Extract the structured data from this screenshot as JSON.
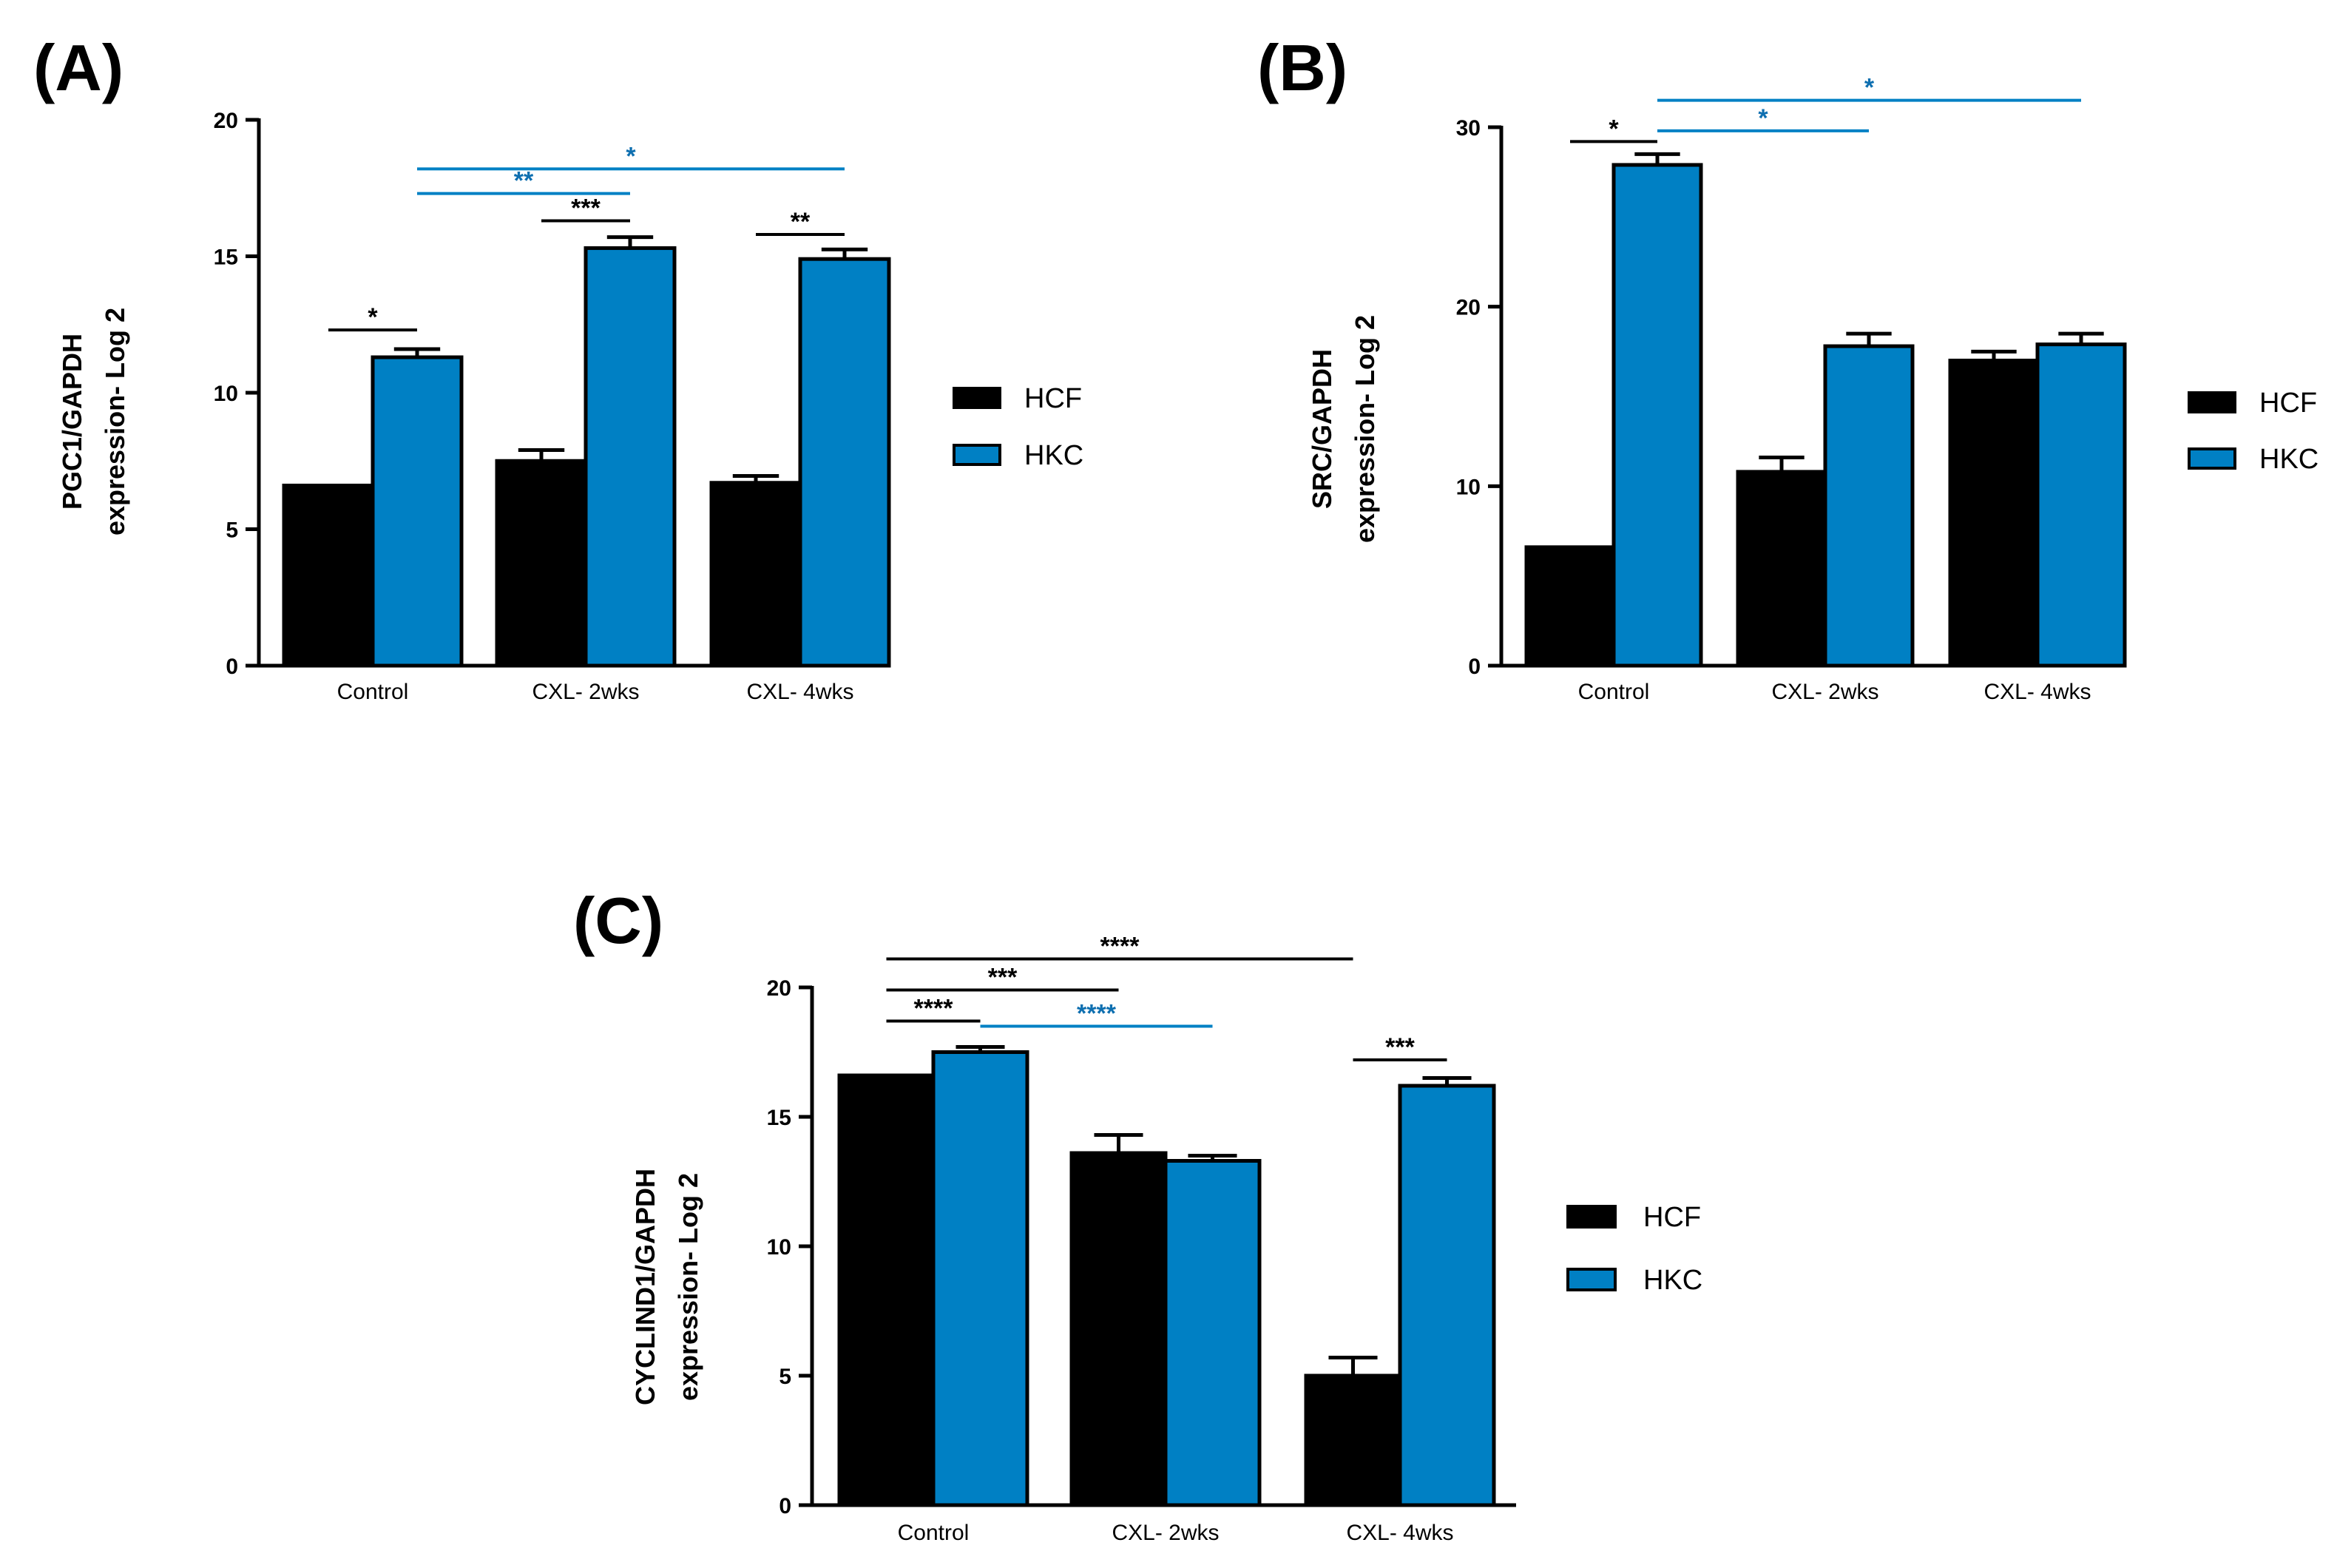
{
  "colors": {
    "HCF": "#000000",
    "HKC": "#0080C4",
    "sig_blue": "#0E6FB0",
    "sig_black": "#000000"
  },
  "chart_data": [
    {
      "panel": "(A)",
      "type": "bar",
      "ylabel_line1": "PGC1/GAPDH",
      "ylabel_line2": "expression- Log 2",
      "ylim": [
        0,
        20
      ],
      "yticks": [
        0,
        5,
        10,
        15,
        20
      ],
      "categories": [
        "Control",
        "CXL- 2wks",
        "CXL- 4wks"
      ],
      "series": [
        {
          "name": "HCF",
          "values": [
            6.6,
            7.5,
            6.7
          ],
          "errors": [
            0,
            0.4,
            0.25
          ]
        },
        {
          "name": "HKC",
          "values": [
            11.3,
            15.3,
            14.9
          ],
          "errors": [
            0.3,
            0.4,
            0.35
          ]
        }
      ],
      "legend": [
        "HCF",
        "HKC"
      ],
      "significance": [
        {
          "from": [
            "Control",
            "HCF"
          ],
          "to": [
            "Control",
            "HKC"
          ],
          "label": "*",
          "color": "black",
          "y": 12.3
        },
        {
          "from": [
            "CXL- 2wks",
            "HCF"
          ],
          "to": [
            "CXL- 2wks",
            "HKC"
          ],
          "label": "***",
          "color": "black",
          "y": 16.3
        },
        {
          "from": [
            "CXL- 4wks",
            "HCF"
          ],
          "to": [
            "CXL- 4wks",
            "HKC"
          ],
          "label": "**",
          "color": "black",
          "y": 15.8
        },
        {
          "from": [
            "Control",
            "HKC"
          ],
          "to": [
            "CXL- 2wks",
            "HKC"
          ],
          "label": "**",
          "color": "blue",
          "y": 17.3
        },
        {
          "from": [
            "Control",
            "HKC"
          ],
          "to": [
            "CXL- 4wks",
            "HKC"
          ],
          "label": "*",
          "color": "blue",
          "y": 18.2
        }
      ]
    },
    {
      "panel": "(B)",
      "type": "bar",
      "ylabel_line1": "SRC/GAPDH",
      "ylabel_line2": "expression- Log 2",
      "ylim": [
        0,
        30
      ],
      "yticks": [
        0,
        10,
        20,
        30
      ],
      "categories": [
        "Control",
        "CXL- 2wks",
        "CXL- 4wks"
      ],
      "series": [
        {
          "name": "HCF",
          "values": [
            6.6,
            10.8,
            17.0
          ],
          "errors": [
            0,
            0.8,
            0.5
          ]
        },
        {
          "name": "HKC",
          "values": [
            27.9,
            17.8,
            17.9
          ],
          "errors": [
            0.6,
            0.7,
            0.6
          ]
        }
      ],
      "legend": [
        "HCF",
        "HKC"
      ],
      "significance": [
        {
          "from": [
            "Control",
            "HCF"
          ],
          "to": [
            "Control",
            "HKC"
          ],
          "label": "*",
          "color": "black",
          "y": 29.2
        },
        {
          "from": [
            "Control",
            "HKC"
          ],
          "to": [
            "CXL- 2wks",
            "HKC"
          ],
          "label": "*",
          "color": "blue",
          "y": 29.8
        },
        {
          "from": [
            "Control",
            "HKC"
          ],
          "to": [
            "CXL- 4wks",
            "HKC"
          ],
          "label": "*",
          "color": "blue",
          "y": 31.5
        }
      ]
    },
    {
      "panel": "(C)",
      "type": "bar",
      "ylabel_line1": "CYCLIND1/GAPDH",
      "ylabel_line2": "expression- Log 2",
      "ylim": [
        0,
        20
      ],
      "yticks": [
        0,
        5,
        10,
        15,
        20
      ],
      "categories": [
        "Control",
        "CXL- 2wks",
        "CXL- 4wks"
      ],
      "series": [
        {
          "name": "HCF",
          "values": [
            16.6,
            13.6,
            5.0
          ],
          "errors": [
            0,
            0.7,
            0.7
          ]
        },
        {
          "name": "HKC",
          "values": [
            17.5,
            13.3,
            16.2
          ],
          "errors": [
            0.2,
            0.2,
            0.3
          ]
        }
      ],
      "legend": [
        "HCF",
        "HKC"
      ],
      "significance": [
        {
          "from": [
            "Control",
            "HCF"
          ],
          "to": [
            "Control",
            "HKC"
          ],
          "label": "****",
          "color": "black",
          "y": 18.7
        },
        {
          "from": [
            "Control",
            "HKC"
          ],
          "to": [
            "CXL- 2wks",
            "HKC"
          ],
          "label": "****",
          "color": "blue",
          "y": 18.5
        },
        {
          "from": [
            "Control",
            "HCF"
          ],
          "to": [
            "CXL- 2wks",
            "HCF"
          ],
          "label": "***",
          "color": "black",
          "y": 19.9
        },
        {
          "from": [
            "Control",
            "HCF"
          ],
          "to": [
            "CXL- 4wks",
            "HCF"
          ],
          "label": "****",
          "color": "black",
          "y": 21.1
        },
        {
          "from": [
            "CXL- 4wks",
            "HCF"
          ],
          "to": [
            "CXL- 4wks",
            "HKC"
          ],
          "label": "***",
          "color": "black",
          "y": 17.2
        }
      ]
    }
  ]
}
